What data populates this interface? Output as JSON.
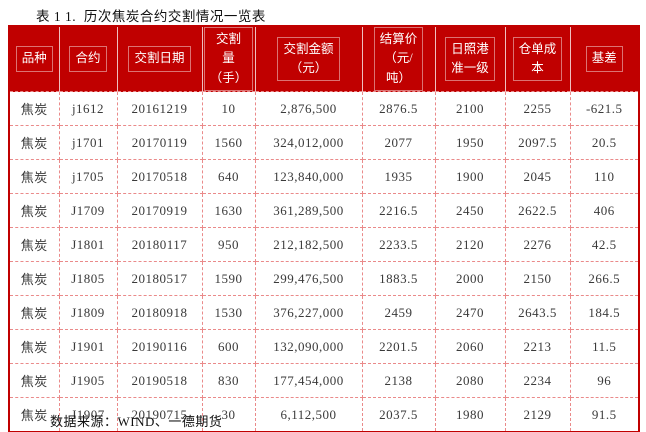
{
  "page": {
    "title": "表 1 1.  历次焦炭合约交割情况一览表",
    "source_note": "数据来源：WIND、一德期货"
  },
  "colors": {
    "header_background": "#c00000",
    "outer_border": "#c00000",
    "grid_dashed": "#ea8a8a",
    "header_text": "#ffffff",
    "body_text": "#3a3a3a"
  },
  "table": {
    "headers": [
      "品种",
      "合约",
      "交割日期",
      "交割\n量\n（手）",
      "交割金额\n（元）",
      "结算价\n（元/\n吨）",
      "日照港\n准一级",
      "仓单成\n本",
      "基差"
    ],
    "rows": [
      [
        "焦炭",
        "j1612",
        "20161219",
        "10",
        "2,876,500",
        "2876.5",
        "2100",
        "2255",
        "-621.5"
      ],
      [
        "焦炭",
        "j1701",
        "20170119",
        "1560",
        "324,012,000",
        "2077",
        "1950",
        "2097.5",
        "20.5"
      ],
      [
        "焦炭",
        "j1705",
        "20170518",
        "640",
        "123,840,000",
        "1935",
        "1900",
        "2045",
        "110"
      ],
      [
        "焦炭",
        "J1709",
        "20170919",
        "1630",
        "361,289,500",
        "2216.5",
        "2450",
        "2622.5",
        "406"
      ],
      [
        "焦炭",
        "J1801",
        "20180117",
        "950",
        "212,182,500",
        "2233.5",
        "2120",
        "2276",
        "42.5"
      ],
      [
        "焦炭",
        "J1805",
        "20180517",
        "1590",
        "299,476,500",
        "1883.5",
        "2000",
        "2150",
        "266.5"
      ],
      [
        "焦炭",
        "J1809",
        "20180918",
        "1530",
        "376,227,000",
        "2459",
        "2470",
        "2643.5",
        "184.5"
      ],
      [
        "焦炭",
        "J1901",
        "20190116",
        "600",
        "132,090,000",
        "2201.5",
        "2060",
        "2213",
        "11.5"
      ],
      [
        "焦炭",
        "J1905",
        "20190518",
        "830",
        "177,454,000",
        "2138",
        "2080",
        "2234",
        "96"
      ],
      [
        "焦炭",
        "J1907",
        "20190715",
        "30",
        "6,112,500",
        "2037.5",
        "1980",
        "2129",
        "91.5"
      ]
    ]
  }
}
